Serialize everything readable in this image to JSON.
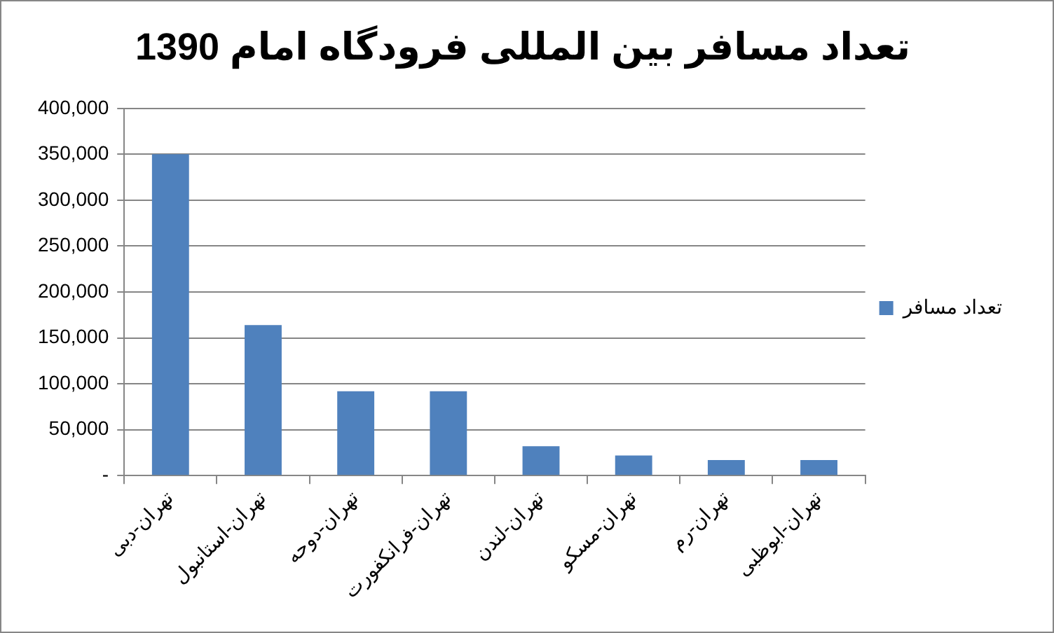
{
  "chart_data": {
    "type": "bar",
    "title": "تعداد مسافر بین المللی فرودگاه امام 1390",
    "categories": [
      "تهران-دبی",
      "تهران-استانبول",
      "تهران-دوحه",
      "تهران-فرانکفورت",
      "تهران-لندن",
      "تهران-مسکو",
      "تهران-رم",
      "تهران-ابوظبی"
    ],
    "series": [
      {
        "name": "تعداد مسافر",
        "color": "#4f81bd",
        "values": [
          350000,
          164000,
          92000,
          92000,
          32000,
          22000,
          17000,
          17000
        ]
      }
    ],
    "ylim": [
      0,
      400000
    ],
    "yticks": [
      {
        "value": 0,
        "label": "-"
      },
      {
        "value": 50000,
        "label": "50,000"
      },
      {
        "value": 100000,
        "label": "100,000"
      },
      {
        "value": 150000,
        "label": "150,000"
      },
      {
        "value": 200000,
        "label": "200,000"
      },
      {
        "value": 250000,
        "label": "250,000"
      },
      {
        "value": 300000,
        "label": "300,000"
      },
      {
        "value": 350000,
        "label": "350,000"
      },
      {
        "value": 400000,
        "label": "400,000"
      }
    ],
    "grid": "y",
    "legend": "right"
  }
}
